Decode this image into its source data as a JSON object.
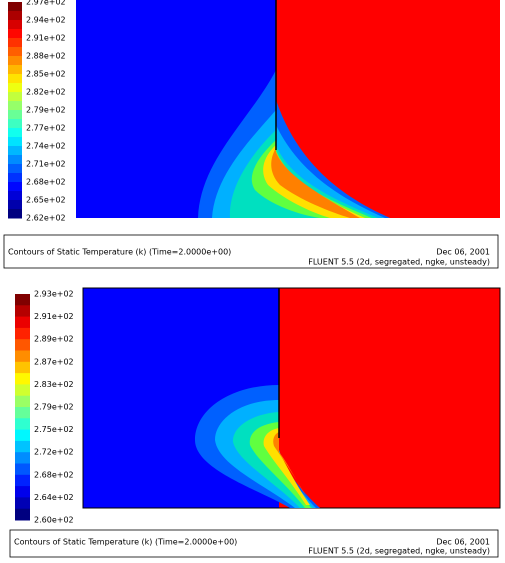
{
  "panels": [
    {
      "colorbar_labels": [
        "2.97e+02",
        "2.94e+02",
        "2.91e+02",
        "2.88e+02",
        "2.85e+02",
        "2.82e+02",
        "2.79e+02",
        "2.77e+02",
        "2.74e+02",
        "2.71e+02",
        "2.68e+02",
        "2.65e+02",
        "2.62e+02"
      ],
      "caption": "Contours of Static Temperature (k)  (Time=2.0000e+00)",
      "date": "Dec 06, 2001",
      "solver": "FLUENT 5.5 (2d, segregated, ngke, unsteady)"
    },
    {
      "colorbar_labels": [
        "2.93e+02",
        "2.91e+02",
        "2.89e+02",
        "2.87e+02",
        "2.83e+02",
        "2.79e+02",
        "2.75e+02",
        "2.72e+02",
        "2.68e+02",
        "2.64e+02",
        "2.60e+02"
      ],
      "caption": "Contours of Static Temperature (k)  (Time=2.0000e+00)",
      "date": "Dec 06, 2001",
      "solver": "FLUENT 5.5 (2d, segregated, ngke, unsteady)"
    }
  ]
}
